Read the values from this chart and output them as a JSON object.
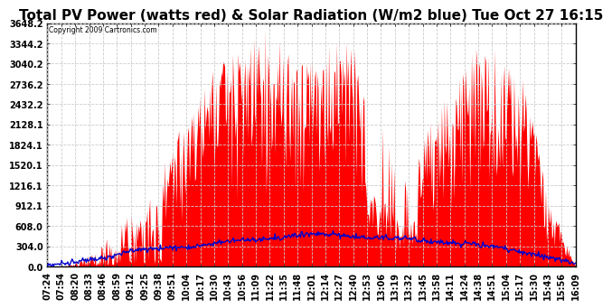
{
  "title": "Total PV Power (watts red) & Solar Radiation (W/m2 blue) Tue Oct 27 16:15",
  "copyright": "Copyright 2009 Cartronics.com",
  "ylim": [
    0.0,
    3648.2
  ],
  "yticks": [
    0.0,
    304.0,
    608.0,
    912.1,
    1216.1,
    1520.1,
    1824.1,
    2128.1,
    2432.2,
    2736.2,
    3040.2,
    3344.2,
    3648.2
  ],
  "xtick_labels": [
    "07:24",
    "07:54",
    "08:20",
    "08:33",
    "08:46",
    "08:59",
    "09:12",
    "09:25",
    "09:38",
    "09:51",
    "10:04",
    "10:17",
    "10:30",
    "10:43",
    "10:56",
    "11:09",
    "11:22",
    "11:35",
    "11:48",
    "12:01",
    "12:14",
    "12:27",
    "12:40",
    "12:53",
    "13:06",
    "13:19",
    "13:32",
    "13:45",
    "13:58",
    "14:11",
    "14:24",
    "14:38",
    "14:51",
    "15:04",
    "15:17",
    "15:30",
    "15:43",
    "15:56",
    "16:09"
  ],
  "bg_color": "#ffffff",
  "plot_bg_color": "#ffffff",
  "grid_color": "#cccccc",
  "red_color": "#ff0000",
  "blue_color": "#0000cc",
  "title_fontsize": 11,
  "tick_fontsize": 7
}
